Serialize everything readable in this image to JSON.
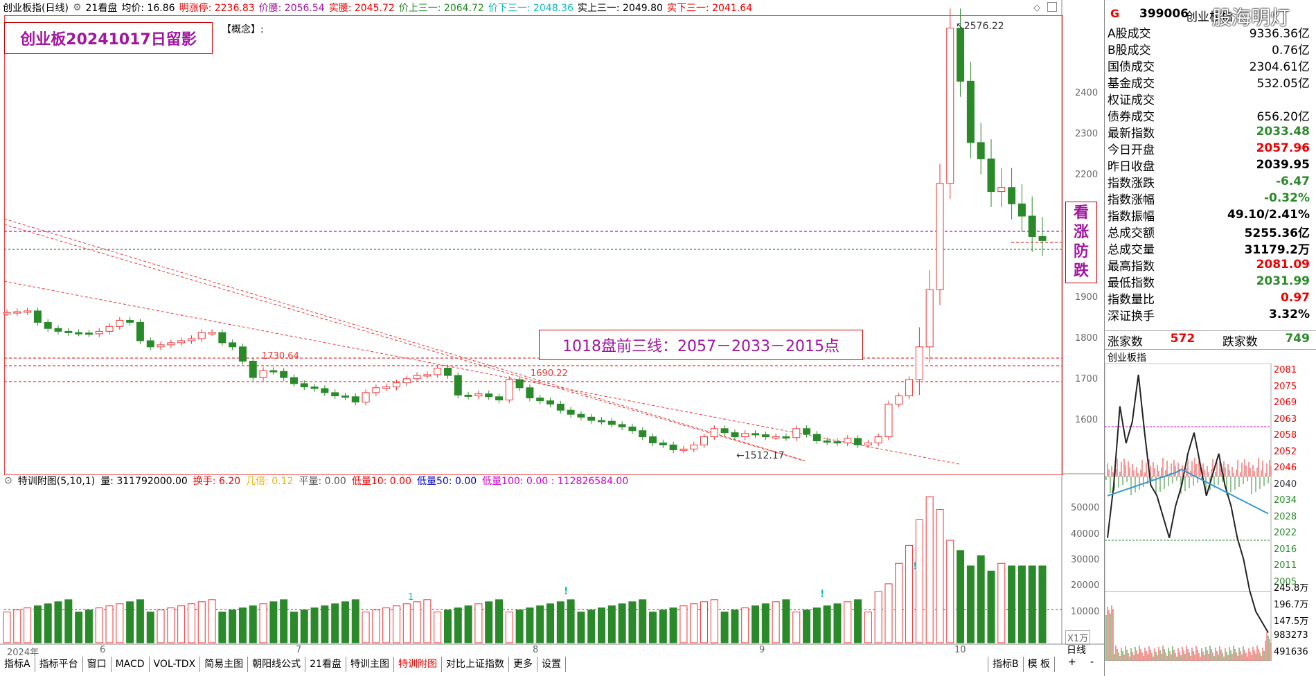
{
  "topbar": {
    "title": "创业板指(日线)",
    "tool": "21看盘",
    "avg": "均价: 16.86",
    "limit_up": "明涨停: 2236.83",
    "price_waist": "价腰: 2056.54",
    "real_waist": "实腰: 2045.72",
    "price_up3": "价上三一: 2064.72",
    "price_down3": "价下三一: 2048.36",
    "real_up3": "实上三一: 2049.80",
    "real_down3": "实下三一: 2041.64"
  },
  "annotations": {
    "stamp": "创业板20241017日留影",
    "concept": "【概念】:",
    "note": "1018盘前三线：2057－2033－2015点",
    "vertical_note": [
      "看",
      "涨",
      "防",
      "跌"
    ],
    "high_label": "2576.22",
    "low_label": "1512.17",
    "level1": "1730.64",
    "level2": "1690.22",
    "vol_markers": [
      "1",
      "!",
      "!",
      "!"
    ]
  },
  "watermark": "股海明灯",
  "price_axis": [
    "2400",
    "2300",
    "2200",
    "1900",
    "1800",
    "1700",
    "1600"
  ],
  "volume_axis": [
    "50000",
    "40000",
    "30000",
    "20000",
    "10000"
  ],
  "volume_unit": "X1万",
  "date_axis": [
    "2024年",
    "6",
    "7",
    "8",
    "9",
    "10"
  ],
  "sub_header": {
    "name": "特训附图(5,10,1)",
    "vol": "量: 311792000.00",
    "turnover": "换手: 6.20",
    "ratio": "几倍: 0.12",
    "flat": "平量: 0.00",
    "low10": "低量10: 0.00",
    "low50": "低量50: 0.00",
    "low100": "低量100: 0.00 : 112826584.00"
  },
  "bottom_tabs": [
    "指标A",
    "指标平台",
    "窗口",
    "MACD",
    "VOL-TDX",
    "简易主图",
    "朝阳线公式",
    "21看盘",
    "特训主图",
    "特训附图",
    "对比上证指数",
    "更多",
    "设置"
  ],
  "bottom_right_tabs": [
    "指标B",
    "模 板"
  ],
  "period_tab": "日线",
  "zoom_buttons": [
    "+",
    "-"
  ],
  "right_panel": {
    "flag": "G",
    "code": "399006",
    "name": "创业板指",
    "rows": [
      {
        "label": "A股成交",
        "value": "9336.36亿",
        "color": "#000"
      },
      {
        "label": "B股成交",
        "value": "0.76亿",
        "color": "#000"
      },
      {
        "label": "国债成交",
        "value": "2304.61亿",
        "color": "#000"
      },
      {
        "label": "基金成交",
        "value": "532.05亿",
        "color": "#000"
      },
      {
        "label": "权证成交",
        "value": "",
        "color": "#000"
      },
      {
        "label": "债券成交",
        "value": "656.20亿",
        "color": "#000"
      },
      {
        "label": "最新指数",
        "value": "2033.48",
        "color": "#2a8a2a"
      },
      {
        "label": "今日开盘",
        "value": "2057.96",
        "color": "#e00"
      },
      {
        "label": "昨日收盘",
        "value": "2039.95",
        "color": "#000"
      },
      {
        "label": "指数涨跌",
        "value": "-6.47",
        "color": "#2a8a2a"
      },
      {
        "label": "指数涨幅",
        "value": "-0.32%",
        "color": "#2a8a2a"
      },
      {
        "label": "指数振幅",
        "value": "49.10/2.41%",
        "color": "#000"
      },
      {
        "label": "总成交额",
        "value": "5255.36亿",
        "color": "#000"
      },
      {
        "label": "总成交量",
        "value": "31179.2万",
        "color": "#000"
      },
      {
        "label": "最高指数",
        "value": "2081.09",
        "color": "#e00"
      },
      {
        "label": "最低指数",
        "value": "2031.99",
        "color": "#2a8a2a"
      },
      {
        "label": "指数量比",
        "value": "0.97",
        "color": "#e00"
      },
      {
        "label": "深证换手",
        "value": "3.32%",
        "color": "#000"
      }
    ],
    "up_label": "涨家数",
    "up_count": "572",
    "down_label": "跌家数",
    "down_count": "749",
    "intraday_title": "创业板指",
    "intraday_axis": [
      "2081",
      "2075",
      "2069",
      "2063",
      "2058",
      "2052",
      "2046",
      "2040",
      "2034",
      "2028",
      "2022",
      "2016",
      "2011",
      "2005"
    ],
    "intraday_vol_axis": [
      "245.8万",
      "196.7万",
      "147.5万",
      "983273",
      "491636"
    ]
  }
}
